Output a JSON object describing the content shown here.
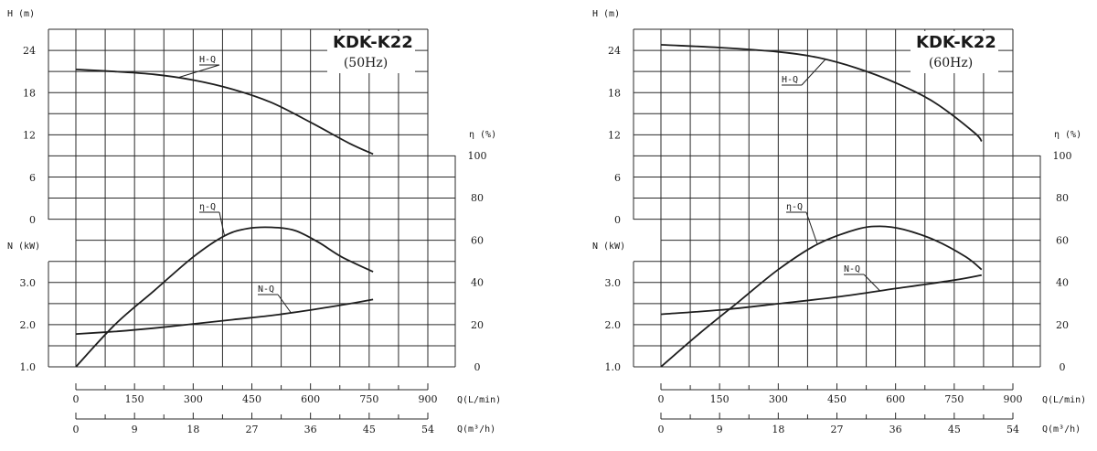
{
  "chart_data": [
    {
      "type": "line",
      "title": "KDK-K22",
      "subtitle": "(50Hz)",
      "x_label": "Q(L/min)",
      "x_ticks": [
        "0",
        "150",
        "300",
        "450",
        "600",
        "750",
        "900"
      ],
      "x2_label": "Q(m³/h)",
      "x2_ticks": [
        "0",
        "9",
        "18",
        "27",
        "36",
        "45",
        "54"
      ],
      "h_axis_label": "H (m)",
      "h_ticks": [
        "24",
        "18",
        "12",
        "6",
        "0"
      ],
      "n_axis_label": "N (kW)",
      "n_ticks": [
        "3.0",
        "2.0",
        "1.0"
      ],
      "eta_axis_label": "η (%)",
      "eta_ticks": [
        "100",
        "80",
        "60",
        "40",
        "20",
        "0"
      ],
      "grid": true,
      "series": [
        {
          "name": "H-Q",
          "axis": "H",
          "x": [
            0,
            100,
            200,
            300,
            400,
            500,
            600,
            700,
            760
          ],
          "y": [
            21.3,
            21.0,
            20.6,
            19.8,
            18.5,
            16.6,
            13.8,
            10.8,
            9.3
          ]
        },
        {
          "name": "η-Q",
          "axis": "eta",
          "x": [
            0,
            100,
            200,
            300,
            380,
            440,
            500,
            560,
            620,
            680,
            760
          ],
          "y": [
            0,
            20,
            36,
            52,
            62,
            65.5,
            66,
            64.5,
            59,
            52,
            45
          ]
        },
        {
          "name": "N-Q",
          "axis": "N",
          "x": [
            0,
            100,
            200,
            300,
            400,
            500,
            600,
            700,
            760
          ],
          "y": [
            1.78,
            1.84,
            1.92,
            2.02,
            2.12,
            2.22,
            2.35,
            2.5,
            2.6
          ]
        }
      ]
    },
    {
      "type": "line",
      "title": "KDK-K22",
      "subtitle": "(60Hz)",
      "x_label": "Q(L/min)",
      "x_ticks": [
        "0",
        "150",
        "300",
        "450",
        "600",
        "750",
        "900"
      ],
      "x2_label": "Q(m³/h)",
      "x2_ticks": [
        "0",
        "9",
        "18",
        "27",
        "36",
        "45",
        "54"
      ],
      "h_axis_label": "H (m)",
      "h_ticks": [
        "24",
        "18",
        "12",
        "6",
        "0"
      ],
      "n_axis_label": "N (kW)",
      "n_ticks": [
        "3.0",
        "2.0",
        "1.0"
      ],
      "eta_axis_label": "η (%)",
      "eta_ticks": [
        "100",
        "80",
        "60",
        "40",
        "20",
        "0"
      ],
      "grid": true,
      "series": [
        {
          "name": "H-Q",
          "axis": "H",
          "x": [
            0,
            150,
            300,
            400,
            500,
            600,
            700,
            800,
            820
          ],
          "y": [
            24.8,
            24.4,
            23.8,
            23.0,
            21.5,
            19.4,
            16.6,
            12.4,
            11.1
          ]
        },
        {
          "name": "η-Q",
          "axis": "eta",
          "x": [
            0,
            100,
            200,
            300,
            400,
            500,
            560,
            620,
            700,
            780,
            820
          ],
          "y": [
            0,
            16,
            31,
            46,
            58,
            65,
            66.5,
            65,
            60,
            52,
            46
          ]
        },
        {
          "name": "N-Q",
          "axis": "N",
          "x": [
            0,
            150,
            300,
            450,
            600,
            750,
            820
          ],
          "y": [
            2.25,
            2.35,
            2.5,
            2.66,
            2.86,
            3.06,
            3.18
          ]
        }
      ]
    }
  ]
}
